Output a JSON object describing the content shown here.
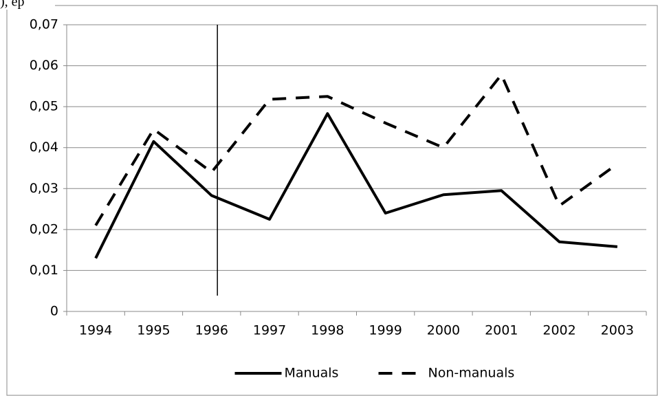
{
  "fragment": "), ep",
  "chart_data": {
    "type": "line",
    "categories": [
      "1994",
      "1995",
      "1996",
      "1997",
      "1998",
      "1999",
      "2000",
      "2001",
      "2002",
      "2003"
    ],
    "series": [
      {
        "name": "Manuals",
        "color": "#000000",
        "dash": "solid",
        "values": [
          0.013,
          0.0415,
          0.0283,
          0.0225,
          0.0483,
          0.024,
          0.0285,
          0.0295,
          0.017,
          0.0158
        ]
      },
      {
        "name": "Non-manuals",
        "color": "#000000",
        "dash": "dashed",
        "values": [
          0.021,
          0.0445,
          0.034,
          0.0518,
          0.0525,
          0.046,
          0.04,
          0.0578,
          0.0258,
          0.036
        ]
      }
    ],
    "ylim": [
      0,
      0.07
    ],
    "yticks": [
      0,
      {
        "value": 0.01,
        "label": "0,01"
      },
      {
        "value": 0.02,
        "label": "0,02"
      },
      {
        "value": 0.03,
        "label": "0,03"
      },
      {
        "value": 0.04,
        "label": "0,04"
      },
      {
        "value": 0.05,
        "label": "0,05"
      },
      {
        "value": 0.06,
        "label": "0,06"
      },
      {
        "value": 0.07,
        "label": "0,07"
      }
    ],
    "grid": true,
    "legend": "bottom"
  }
}
